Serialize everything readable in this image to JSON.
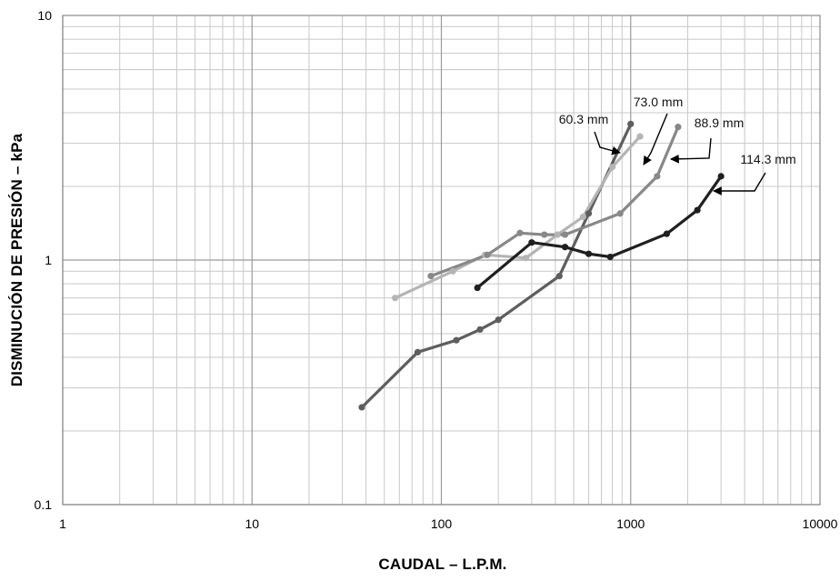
{
  "chart_data": {
    "type": "line",
    "title": "",
    "xlabel": "CAUDAL – L.P.M.",
    "ylabel": "DISMINUCIÓN DE PRESIÓN – kPa",
    "x_scale": "log",
    "y_scale": "log",
    "xlim": [
      1,
      10000
    ],
    "ylim": [
      0.1,
      10
    ],
    "grid": true,
    "legend": "none",
    "x_ticks": [
      "1",
      "10",
      "100",
      "1000",
      "10000"
    ],
    "y_ticks": [
      "0.1",
      "1",
      "10"
    ],
    "series": [
      {
        "name": "60.3 mm",
        "color": "#5e5e5e",
        "x": [
          38,
          75,
          120,
          160,
          200,
          420,
          600,
          1000
        ],
        "y": [
          0.25,
          0.42,
          0.47,
          0.52,
          0.57,
          0.86,
          1.55,
          3.6
        ]
      },
      {
        "name": "73.0 mm",
        "color": "#b4b4b4",
        "x": [
          57,
          115,
          170,
          280,
          410,
          560,
          800,
          1120
        ],
        "y": [
          0.7,
          0.9,
          1.05,
          1.02,
          1.27,
          1.5,
          2.4,
          3.2
        ]
      },
      {
        "name": "88.9 mm",
        "color": "#888888",
        "x": [
          88,
          175,
          260,
          350,
          450,
          880,
          1380,
          1780
        ],
        "y": [
          0.86,
          1.05,
          1.29,
          1.27,
          1.27,
          1.55,
          2.2,
          3.5
        ]
      },
      {
        "name": "114.3 mm",
        "color": "#1f1f1f",
        "x": [
          155,
          300,
          450,
          600,
          780,
          1550,
          2250,
          3000
        ],
        "y": [
          0.77,
          1.18,
          1.13,
          1.06,
          1.03,
          1.28,
          1.6,
          2.2
        ]
      }
    ]
  }
}
